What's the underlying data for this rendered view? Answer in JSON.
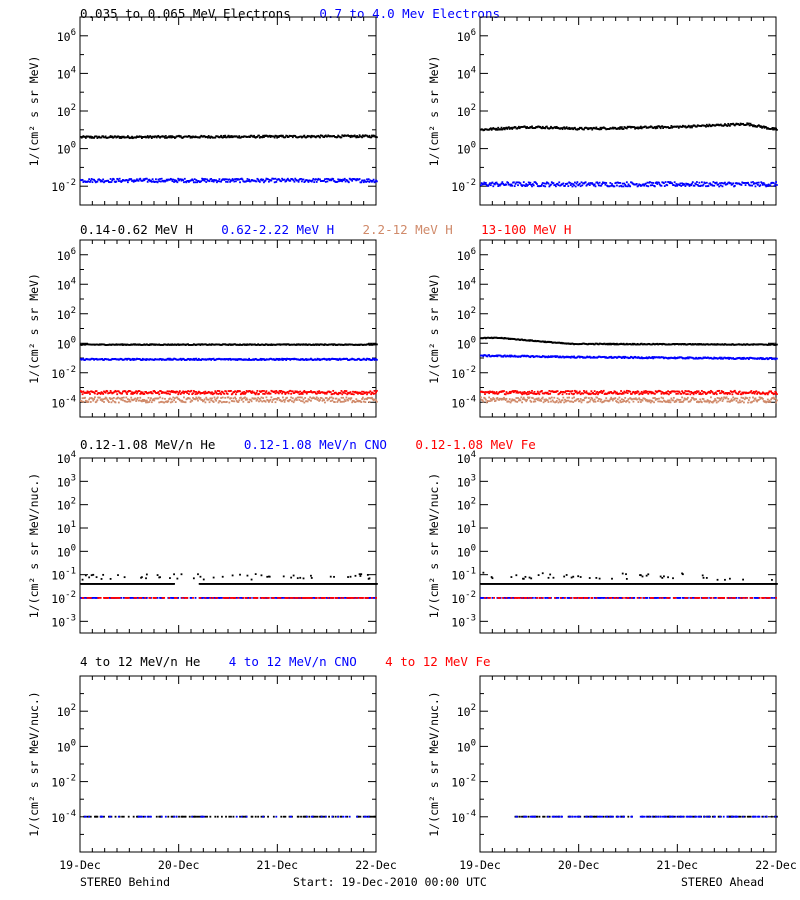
{
  "footer": {
    "left": "STEREO Behind",
    "center": "Start: 19-Dec-2010 00:00 UTC",
    "right": "STEREO Ahead",
    "x_ticks": [
      "19-Dec",
      "20-Dec",
      "21-Dec",
      "22-Dec"
    ]
  },
  "chart_data": [
    {
      "type": "scatter",
      "row": 0,
      "title_segments": [
        {
          "text": "0.035 to 0.065 MeV Electrons",
          "color": "#000000"
        },
        {
          "text": "0.7 to 4.0 Mev Electrons",
          "color": "#0000ff"
        }
      ],
      "ylabel": "1/(cm² s sr MeV)",
      "yscale": "log",
      "ylim_exp": [
        -3,
        7
      ],
      "y_tick_exponents": [
        -2,
        0,
        2,
        4,
        6
      ],
      "x_tick_labels": [
        "19-Dec",
        "20-Dec",
        "21-Dec",
        "22-Dec"
      ],
      "xlim_days": [
        0,
        3
      ],
      "panels": [
        {
          "spacecraft": "STEREO Behind",
          "series": [
            {
              "color": "#000000",
              "log10_profile": [
                [
                  0,
                  0.6
                ],
                [
                  3,
                  0.65
                ]
              ],
              "noise": 0.06,
              "gaps": []
            },
            {
              "color": "#0000ff",
              "log10_profile": [
                [
                  0,
                  -1.7
                ],
                [
                  3,
                  -1.7
                ]
              ],
              "noise": 0.1,
              "gaps": []
            }
          ]
        },
        {
          "spacecraft": "STEREO Ahead",
          "series": [
            {
              "color": "#000000",
              "log10_profile": [
                [
                  0,
                  1.0
                ],
                [
                  0.5,
                  1.15
                ],
                [
                  1.0,
                  1.05
                ],
                [
                  2.0,
                  1.15
                ],
                [
                  2.7,
                  1.3
                ],
                [
                  3,
                  1.0
                ]
              ],
              "noise": 0.06,
              "gaps": []
            },
            {
              "color": "#0000ff",
              "log10_profile": [
                [
                  0,
                  -1.9
                ],
                [
                  3,
                  -1.9
                ]
              ],
              "noise": 0.12,
              "gaps": []
            }
          ]
        }
      ]
    },
    {
      "type": "scatter",
      "row": 1,
      "title_segments": [
        {
          "text": "0.14-0.62 MeV H",
          "color": "#000000"
        },
        {
          "text": "0.62-2.22 MeV H",
          "color": "#0000ff"
        },
        {
          "text": "2.2-12 MeV H",
          "color": "#d08a6a"
        },
        {
          "text": "13-100 MeV H",
          "color": "#ff0000"
        }
      ],
      "ylabel": "1/(cm² s sr MeV)",
      "yscale": "log",
      "ylim_exp": [
        -5,
        7
      ],
      "y_tick_exponents": [
        -4,
        -2,
        0,
        2,
        4,
        6
      ],
      "x_tick_labels": [
        "19-Dec",
        "20-Dec",
        "21-Dec",
        "22-Dec"
      ],
      "xlim_days": [
        0,
        3
      ],
      "panels": [
        {
          "spacecraft": "STEREO Behind",
          "series": [
            {
              "color": "#000000",
              "log10_profile": [
                [
                  0,
                  -0.1
                ],
                [
                  3,
                  -0.1
                ]
              ],
              "noise": 0.03,
              "gaps": []
            },
            {
              "color": "#0000ff",
              "log10_profile": [
                [
                  0,
                  -1.1
                ],
                [
                  3,
                  -1.1
                ]
              ],
              "noise": 0.05,
              "gaps": []
            },
            {
              "color": "#d08a6a",
              "log10_profile": [
                [
                  0,
                  -3.85
                ],
                [
                  3,
                  -3.85
                ]
              ],
              "noise": 0.18,
              "gaps": []
            },
            {
              "color": "#ff0000",
              "log10_profile": [
                [
                  0,
                  -3.35
                ],
                [
                  3,
                  -3.35
                ]
              ],
              "noise": 0.12,
              "gaps": []
            }
          ]
        },
        {
          "spacecraft": "STEREO Ahead",
          "series": [
            {
              "color": "#000000",
              "log10_profile": [
                [
                  0,
                  0.35
                ],
                [
                  0.2,
                  0.35
                ],
                [
                  0.9,
                  -0.05
                ],
                [
                  3,
                  -0.1
                ]
              ],
              "noise": 0.03,
              "gaps": []
            },
            {
              "color": "#0000ff",
              "log10_profile": [
                [
                  0,
                  -0.85
                ],
                [
                  1.0,
                  -0.95
                ],
                [
                  3,
                  -1.05
                ]
              ],
              "noise": 0.05,
              "gaps": []
            },
            {
              "color": "#d08a6a",
              "log10_profile": [
                [
                  0,
                  -3.85
                ],
                [
                  3,
                  -3.85
                ]
              ],
              "noise": 0.18,
              "gaps": []
            },
            {
              "color": "#ff0000",
              "log10_profile": [
                [
                  0,
                  -3.35
                ],
                [
                  3,
                  -3.35
                ]
              ],
              "noise": 0.12,
              "gaps": []
            }
          ]
        }
      ]
    },
    {
      "type": "scatter",
      "row": 2,
      "title_segments": [
        {
          "text": "0.12-1.08 MeV/n He",
          "color": "#000000"
        },
        {
          "text": "0.12-1.08 MeV/n CNO",
          "color": "#0000ff"
        },
        {
          "text": "0.12-1.08 MeV Fe",
          "color": "#ff0000"
        }
      ],
      "ylabel": "1/(cm² s sr MeV/nuc.)",
      "yscale": "log",
      "ylim_exp": [
        -3.5,
        4
      ],
      "y_tick_exponents": [
        -3,
        -2,
        -1,
        0,
        1,
        2,
        3,
        4
      ],
      "x_tick_labels": [
        "19-Dec",
        "20-Dec",
        "21-Dec",
        "22-Dec"
      ],
      "xlim_days": [
        0,
        3
      ],
      "panels": [
        {
          "spacecraft": "STEREO Behind",
          "series": [
            {
              "color": "#000000",
              "log10_profile": [
                [
                  0,
                  -1.4
                ],
                [
                  3,
                  -1.4
                ]
              ],
              "noise": 0.0,
              "gaps": [
                [
                  0.95,
                  1.2
                ]
              ]
            },
            {
              "color": "#000000",
              "log10_profile": [
                [
                  0,
                  -1.1
                ],
                [
                  3,
                  -1.1
                ]
              ],
              "noise": 0.12,
              "gaps": [],
              "sparse": 0.12
            },
            {
              "color": "#0000ff",
              "log10_profile": [
                [
                  0,
                  -2.0
                ],
                [
                  3,
                  -2.0
                ]
              ],
              "noise": 0.0,
              "gaps": [],
              "sparse": 0.55
            },
            {
              "color": "#ff0000",
              "log10_profile": [
                [
                  0,
                  -2.0
                ],
                [
                  3,
                  -2.0
                ]
              ],
              "noise": 0.0,
              "gaps": [],
              "sparse": 0.35
            }
          ]
        },
        {
          "spacecraft": "STEREO Ahead",
          "series": [
            {
              "color": "#000000",
              "log10_profile": [
                [
                  0,
                  -1.4
                ],
                [
                  3,
                  -1.4
                ]
              ],
              "noise": 0.0,
              "gaps": []
            },
            {
              "color": "#000000",
              "log10_profile": [
                [
                  0,
                  -1.05
                ],
                [
                  3,
                  -1.1
                ]
              ],
              "noise": 0.14,
              "gaps": [],
              "sparse": 0.12
            },
            {
              "color": "#0000ff",
              "log10_profile": [
                [
                  0,
                  -2.0
                ],
                [
                  3,
                  -2.0
                ]
              ],
              "noise": 0.0,
              "gaps": [],
              "sparse": 0.55
            },
            {
              "color": "#ff0000",
              "log10_profile": [
                [
                  0,
                  -2.0
                ],
                [
                  3,
                  -2.0
                ]
              ],
              "noise": 0.0,
              "gaps": [],
              "sparse": 0.3
            }
          ]
        }
      ]
    },
    {
      "type": "scatter",
      "row": 3,
      "title_segments": [
        {
          "text": "4 to 12 MeV/n He",
          "color": "#000000"
        },
        {
          "text": "4 to 12 MeV/n CNO",
          "color": "#0000ff"
        },
        {
          "text": "4 to 12 MeV Fe",
          "color": "#ff0000"
        }
      ],
      "ylabel": "1/(cm² s sr MeV/nuc.)",
      "yscale": "log",
      "ylim_exp": [
        -6,
        4
      ],
      "y_tick_exponents": [
        -4,
        -2,
        0,
        2
      ],
      "x_tick_labels": [
        "19-Dec",
        "20-Dec",
        "21-Dec",
        "22-Dec"
      ],
      "xlim_days": [
        0,
        3
      ],
      "panels": [
        {
          "spacecraft": "STEREO Behind",
          "series": [
            {
              "color": "#000000",
              "log10_profile": [
                [
                  0,
                  -4.0
                ],
                [
                  3,
                  -4.0
                ]
              ],
              "noise": 0.0,
              "gaps": [],
              "sparse": 0.35
            },
            {
              "color": "#0000ff",
              "log10_profile": [
                [
                  0,
                  -4.0
                ],
                [
                  3,
                  -4.0
                ]
              ],
              "noise": 0.0,
              "gaps": [],
              "sparse": 0.12
            }
          ]
        },
        {
          "spacecraft": "STEREO Ahead",
          "series": [
            {
              "color": "#000000",
              "log10_profile": [
                [
                  0.35,
                  -4.0
                ],
                [
                  3,
                  -4.0
                ]
              ],
              "noise": 0.0,
              "gaps": [],
              "sparse": 0.3
            },
            {
              "color": "#0000ff",
              "log10_profile": [
                [
                  0.35,
                  -4.0
                ],
                [
                  3,
                  -4.0
                ]
              ],
              "noise": 0.0,
              "gaps": [],
              "sparse": 0.3
            }
          ]
        }
      ]
    }
  ]
}
